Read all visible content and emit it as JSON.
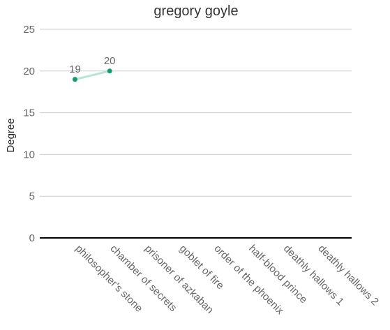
{
  "chart_data": {
    "type": "line",
    "title": "gregory goyle",
    "xlabel": "",
    "ylabel": "Degree",
    "categories": [
      "philosopher's stone",
      "chamber of secrets",
      "prisoner of azkaban",
      "goblet of fire",
      "order of the phoenix",
      "half-blood prince",
      "deathly hallows 1",
      "deathly hallows 2"
    ],
    "series": [
      {
        "values": [
          19,
          20,
          null,
          null,
          null,
          null,
          null,
          null
        ],
        "point_color": "#0f9d6e",
        "line_color": "#b7e6d3"
      }
    ],
    "data_labels": [
      "19",
      "20"
    ],
    "yticks": [
      0,
      5,
      10,
      15,
      20,
      25
    ],
    "ylim": [
      0,
      25
    ],
    "grid": true,
    "legend": "none"
  },
  "colors": {
    "title": "#333333",
    "axis_text": "#666666",
    "grid": "#cccccc",
    "axis": "#000000"
  }
}
